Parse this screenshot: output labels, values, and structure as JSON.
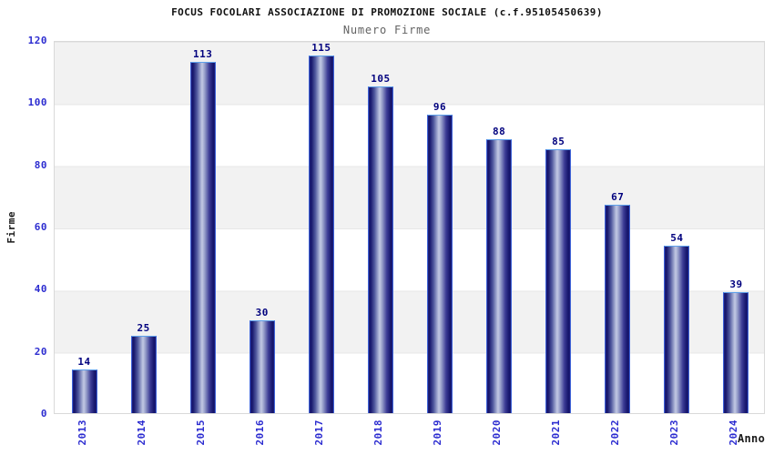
{
  "chart_data": {
    "type": "bar",
    "title": "FOCUS FOCOLARI ASSOCIAZIONE DI PROMOZIONE SOCIALE (c.f.95105450639)",
    "subtitle": "Numero Firme",
    "xlabel": "Anno",
    "ylabel": "Firme",
    "categories": [
      "2013",
      "2014",
      "2015",
      "2016",
      "2017",
      "2018",
      "2019",
      "2020",
      "2021",
      "2022",
      "2023",
      "2024"
    ],
    "values": [
      14,
      25,
      113,
      30,
      115,
      105,
      96,
      88,
      85,
      67,
      54,
      39
    ],
    "ylim": [
      0,
      120
    ],
    "ytick_step": 20,
    "grid": "horizontal-bands-every-20",
    "legend": "none",
    "bar_labels_shown": true,
    "colors": {
      "axis_tick_text": "#2c2cd0",
      "bar_value_text": "#00007e",
      "band_gray": "#f2f2f2",
      "band_white": "#ffffff",
      "plot_border": "#d9d9d9",
      "bar_dark": "#15156b",
      "bar_highlight": "#c3c9e4",
      "bar_outline": "#3e63d8",
      "bar_outline_top": "#5da0ea",
      "title_text": "#111111",
      "subtitle_text": "#636363"
    }
  }
}
